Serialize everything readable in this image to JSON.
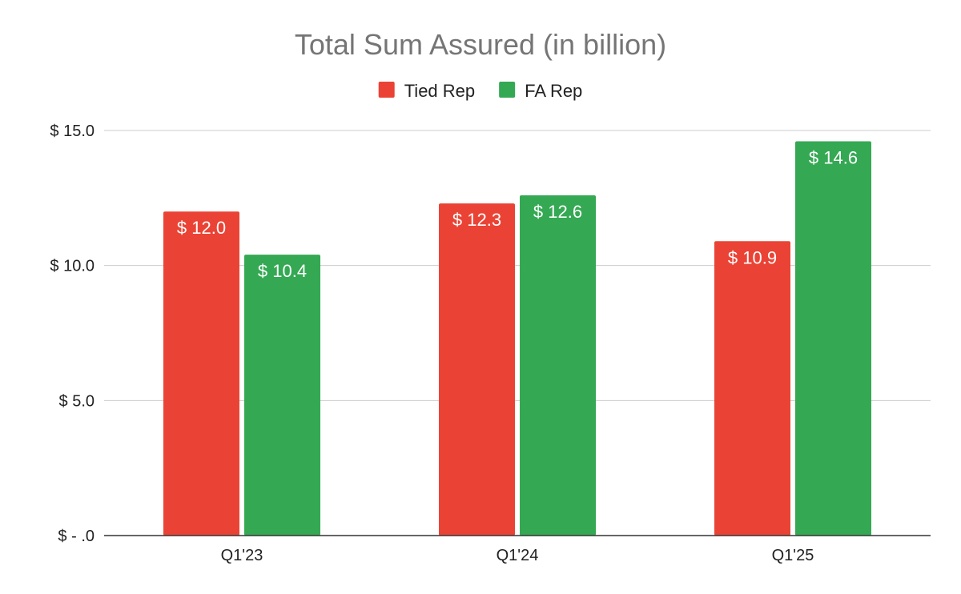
{
  "chart_data": {
    "type": "bar",
    "title": "Total Sum Assured (in billion)",
    "xlabel": "",
    "ylabel": "",
    "categories": [
      "Q1'23",
      "Q1'24",
      "Q1'25"
    ],
    "series": [
      {
        "name": "Tied Rep",
        "color": "#ea4335",
        "values": [
          12.0,
          12.3,
          10.9
        ],
        "labels": [
          "$ 12.0",
          "$ 12.3",
          "$ 10.9"
        ]
      },
      {
        "name": "FA Rep",
        "color": "#34a853",
        "values": [
          10.4,
          12.6,
          14.6
        ],
        "labels": [
          "$ 10.4",
          "$ 12.6",
          "$ 14.6"
        ]
      }
    ],
    "ylim": [
      0,
      15
    ],
    "y_ticks": [
      0,
      5,
      10,
      15
    ],
    "y_tick_labels": [
      "$ -  .0",
      "$ 5.0",
      "$ 10.0",
      "$ 15.0"
    ],
    "grid": true,
    "legend_position": "top-center"
  }
}
